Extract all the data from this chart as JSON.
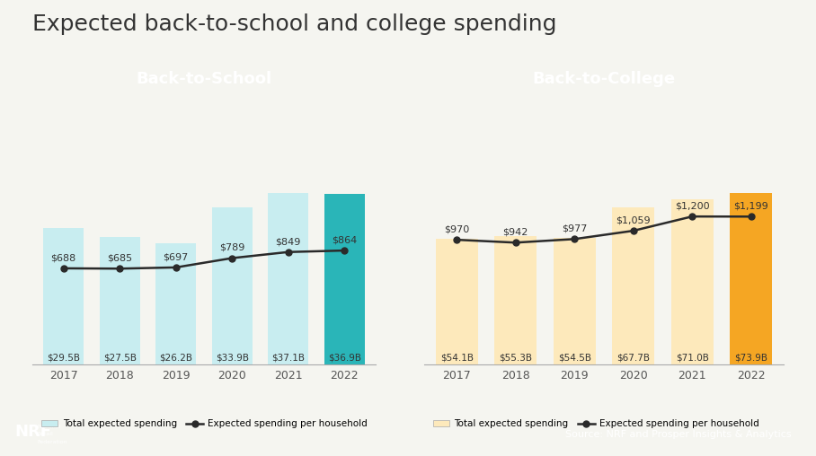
{
  "title": "Expected back-to-school and college spending",
  "title_fontsize": 18,
  "title_color": "#333333",
  "background_color": "#f5f5f0",
  "footer_color": "#3d3d3d",
  "footer_text": "Source: NRF and Prosper Insights & Analytics",
  "school": {
    "label": "Back-to-School",
    "header_color": "#2ab5b8",
    "bar_light_color": "#c8edf0",
    "bar_dark_color": "#2ab5b8",
    "years": [
      "2017",
      "2018",
      "2019",
      "2020",
      "2021",
      "2022"
    ],
    "total_spending": [
      "$29.5B",
      "$27.5B",
      "$26.2B",
      "$33.9B",
      "$37.1B",
      "$36.9B"
    ],
    "per_household": [
      688,
      685,
      697,
      789,
      849,
      864
    ],
    "per_household_labels": [
      "$688",
      "$685",
      "$697",
      "$789",
      "$849",
      "$864"
    ],
    "bar_heights": [
      29.5,
      27.5,
      26.2,
      33.9,
      37.1,
      36.9
    ],
    "highlight_index": 5
  },
  "college": {
    "label": "Back-to-College",
    "header_color": "#f5a623",
    "bar_light_color": "#fde9bb",
    "bar_dark_color": "#f5a623",
    "years": [
      "2017",
      "2018",
      "2019",
      "2020",
      "2021",
      "2022"
    ],
    "total_spending": [
      "$54.1B",
      "$55.3B",
      "$54.5B",
      "$67.7B",
      "$71.0B",
      "$73.9B"
    ],
    "per_household": [
      970,
      942,
      977,
      1059,
      1200,
      1199
    ],
    "per_household_labels": [
      "$970",
      "$942",
      "$977",
      "$1,059",
      "$1,200",
      "$1,199"
    ],
    "bar_heights": [
      54.1,
      55.3,
      54.5,
      67.7,
      71.0,
      73.9
    ],
    "highlight_index": 5
  },
  "legend_bar_label": "Total expected spending",
  "legend_line_label": "Expected spending per household",
  "line_color": "#2a2a2a",
  "marker": "o",
  "marker_size": 5,
  "line_scale_min": 500,
  "line_scale_max": 1350,
  "bar_ylim_factor": 1.55
}
